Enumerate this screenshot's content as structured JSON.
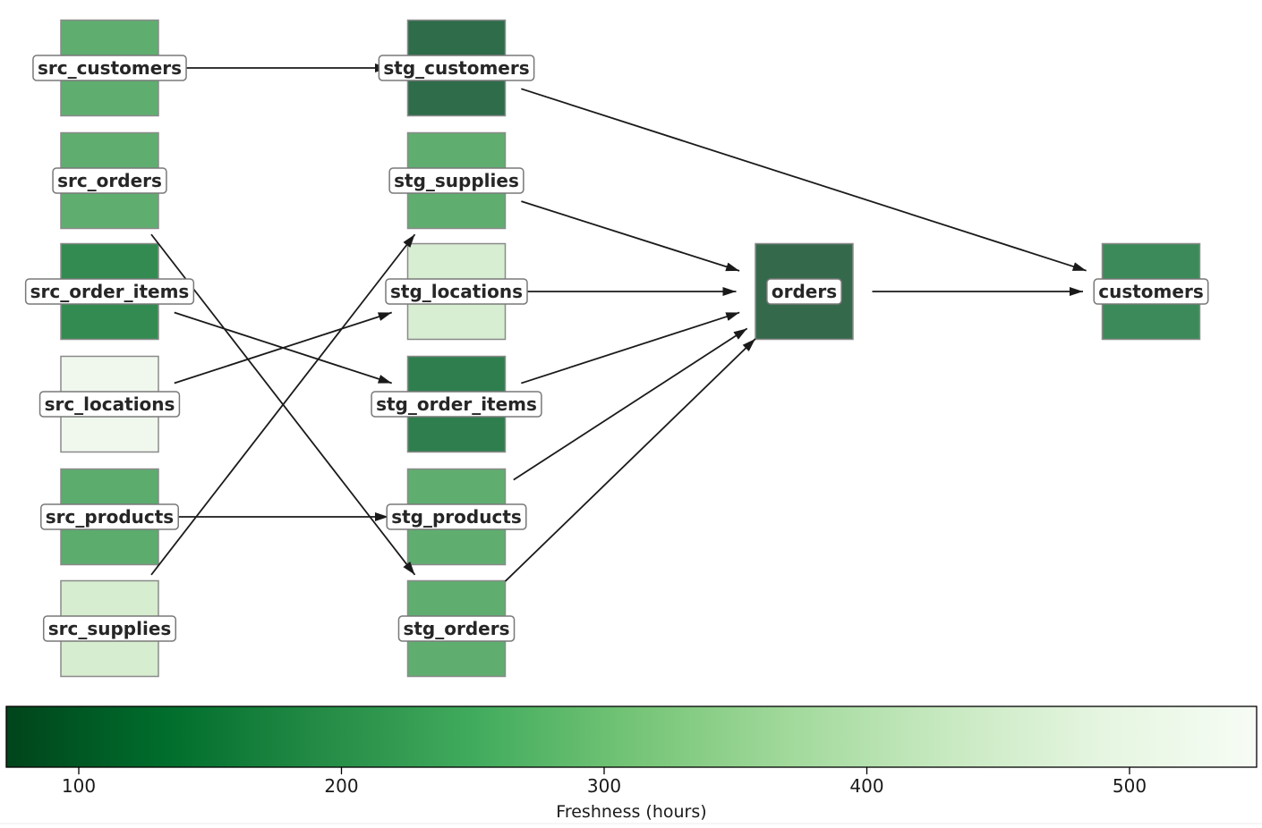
{
  "figure": {
    "background": "#ffffff",
    "type": "lineage-graph"
  },
  "diagram": {
    "nodes": [
      {
        "id": "src_customers",
        "label": "src_customers",
        "color": "#5FAE70",
        "col": 0,
        "row": 0
      },
      {
        "id": "src_orders",
        "label": "src_orders",
        "color": "#5FAE70",
        "col": 0,
        "row": 1
      },
      {
        "id": "src_order_items",
        "label": "src_order_items",
        "color": "#338B51",
        "col": 0,
        "row": 2
      },
      {
        "id": "src_locations",
        "label": "src_locations",
        "color": "#F0F8ED",
        "col": 0,
        "row": 3
      },
      {
        "id": "src_products",
        "label": "src_products",
        "color": "#5CAC6E",
        "col": 0,
        "row": 4
      },
      {
        "id": "src_supplies",
        "label": "src_supplies",
        "color": "#D6EDCF",
        "col": 0,
        "row": 5
      },
      {
        "id": "stg_customers",
        "label": "stg_customers",
        "color": "#2E6C4A",
        "col": 1,
        "row": 0
      },
      {
        "id": "stg_supplies",
        "label": "stg_supplies",
        "color": "#5FAE70",
        "col": 1,
        "row": 1
      },
      {
        "id": "stg_locations",
        "label": "stg_locations",
        "color": "#D8EED2",
        "col": 1,
        "row": 2
      },
      {
        "id": "stg_order_items",
        "label": "stg_order_items",
        "color": "#2F7E4E",
        "col": 1,
        "row": 3
      },
      {
        "id": "stg_products",
        "label": "stg_products",
        "color": "#5FAE70",
        "col": 1,
        "row": 4
      },
      {
        "id": "stg_orders",
        "label": "stg_orders",
        "color": "#5FAE70",
        "col": 1,
        "row": 5
      },
      {
        "id": "orders",
        "label": "orders",
        "color": "#35694B",
        "col": 2,
        "row": 2
      },
      {
        "id": "customers",
        "label": "customers",
        "color": "#3C8A59",
        "col": 3,
        "row": 2
      }
    ],
    "edges": [
      {
        "from": "src_customers",
        "to": "stg_customers"
      },
      {
        "from": "src_orders",
        "to": "stg_orders"
      },
      {
        "from": "src_order_items",
        "to": "stg_order_items"
      },
      {
        "from": "src_locations",
        "to": "stg_locations"
      },
      {
        "from": "src_products",
        "to": "stg_products"
      },
      {
        "from": "src_supplies",
        "to": "stg_supplies"
      },
      {
        "from": "stg_customers",
        "to": "customers"
      },
      {
        "from": "stg_supplies",
        "to": "orders"
      },
      {
        "from": "stg_locations",
        "to": "orders"
      },
      {
        "from": "stg_order_items",
        "to": "orders"
      },
      {
        "from": "stg_products",
        "to": "orders"
      },
      {
        "from": "stg_orders",
        "to": "orders"
      },
      {
        "from": "orders",
        "to": "customers"
      }
    ]
  },
  "colorbar": {
    "label": "Freshness (hours)",
    "ticks": [
      100,
      200,
      300,
      400,
      500
    ],
    "colormap_name": "Greens_r",
    "gradient": [
      "#00441b",
      "#006d2c",
      "#238b45",
      "#41ab5d",
      "#74c476",
      "#a1d99b",
      "#c7e9c0",
      "#e5f5e0",
      "#f7fcf5"
    ]
  },
  "colors": {
    "edge": "#1a1a1a",
    "node_border": "#8a8a8a",
    "label_background": "#ffffff",
    "label_border": "#787878",
    "label_text": "#262626",
    "tick_text": "#1a1a1a"
  }
}
